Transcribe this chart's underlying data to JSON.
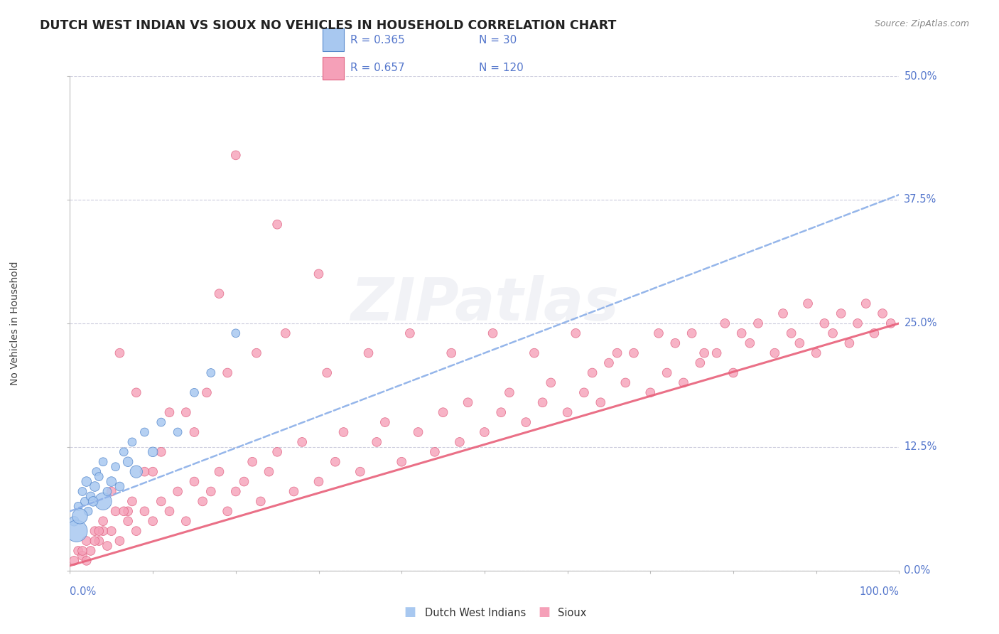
{
  "title": "DUTCH WEST INDIAN VS SIOUX NO VEHICLES IN HOUSEHOLD CORRELATION CHART",
  "source": "Source: ZipAtlas.com",
  "ylabel": "No Vehicles in Household",
  "ytick_labels": [
    "0.0%",
    "12.5%",
    "25.0%",
    "37.5%",
    "50.0%"
  ],
  "ytick_values": [
    0,
    12.5,
    25,
    37.5,
    50
  ],
  "xtick_labels": [
    "0.0%",
    "100.0%"
  ],
  "xlim": [
    0,
    100
  ],
  "ylim": [
    0,
    50
  ],
  "legend_labels": [
    "Dutch West Indians",
    "Sioux"
  ],
  "legend_r": [
    0.365,
    0.657
  ],
  "legend_n": [
    30,
    120
  ],
  "color_blue": "#A8C8F0",
  "color_pink": "#F5A0B8",
  "color_blue_edge": "#5588CC",
  "color_pink_edge": "#E06080",
  "color_blue_line": "#8AAEE8",
  "color_pink_line": "#E8607A",
  "watermark": "ZIPatlas",
  "background_color": "#FFFFFF",
  "grid_color": "#CCCCDD",
  "axis_label_color": "#5577CC",
  "title_color": "#222222",
  "source_color": "#888888",
  "dutch_x": [
    0.5,
    1.0,
    1.5,
    1.8,
    2.0,
    2.2,
    2.5,
    3.0,
    3.2,
    3.5,
    4.0,
    4.0,
    4.5,
    5.0,
    5.5,
    6.0,
    6.5,
    7.0,
    7.5,
    8.0,
    9.0,
    10.0,
    11.0,
    13.0,
    15.0,
    17.0,
    20.0,
    0.8,
    1.2,
    2.8
  ],
  "dutch_y": [
    5.0,
    6.5,
    8.0,
    7.0,
    9.0,
    6.0,
    7.5,
    8.5,
    10.0,
    9.5,
    7.0,
    11.0,
    8.0,
    9.0,
    10.5,
    8.5,
    12.0,
    11.0,
    13.0,
    10.0,
    14.0,
    12.0,
    15.0,
    14.0,
    18.0,
    20.0,
    24.0,
    4.0,
    5.5,
    7.0
  ],
  "dutch_s": [
    80,
    60,
    60,
    60,
    80,
    60,
    70,
    80,
    60,
    60,
    250,
    60,
    60,
    80,
    60,
    70,
    60,
    80,
    60,
    130,
    60,
    80,
    60,
    60,
    60,
    60,
    60,
    400,
    200,
    80
  ],
  "sioux_x": [
    0.5,
    1.0,
    1.5,
    2.0,
    2.5,
    3.0,
    3.5,
    4.0,
    4.5,
    5.0,
    5.5,
    6.0,
    7.0,
    7.5,
    8.0,
    9.0,
    10.0,
    11.0,
    12.0,
    13.0,
    14.0,
    15.0,
    16.0,
    17.0,
    18.0,
    19.0,
    20.0,
    21.0,
    22.0,
    23.0,
    24.0,
    25.0,
    27.0,
    28.0,
    30.0,
    32.0,
    33.0,
    35.0,
    37.0,
    38.0,
    40.0,
    42.0,
    44.0,
    45.0,
    47.0,
    48.0,
    50.0,
    52.0,
    53.0,
    55.0,
    57.0,
    58.0,
    60.0,
    62.0,
    63.0,
    64.0,
    65.0,
    67.0,
    68.0,
    70.0,
    72.0,
    73.0,
    74.0,
    75.0,
    76.0,
    78.0,
    79.0,
    80.0,
    81.0,
    82.0,
    83.0,
    85.0,
    86.0,
    87.0,
    88.0,
    89.0,
    90.0,
    91.0,
    92.0,
    93.0,
    94.0,
    95.0,
    96.0,
    97.0,
    98.0,
    99.0,
    2.0,
    3.0,
    4.0,
    5.0,
    7.0,
    10.0,
    15.0,
    6.0,
    8.0,
    12.0,
    18.0,
    25.0,
    30.0,
    20.0,
    1.5,
    3.5,
    6.5,
    9.0,
    11.0,
    14.0,
    16.5,
    19.0,
    22.5,
    26.0,
    31.0,
    36.0,
    41.0,
    46.0,
    51.0,
    56.0,
    61.0,
    66.0,
    71.0,
    76.5
  ],
  "sioux_y": [
    1.0,
    2.0,
    1.5,
    3.0,
    2.0,
    4.0,
    3.0,
    5.0,
    2.5,
    4.0,
    6.0,
    3.0,
    5.0,
    7.0,
    4.0,
    6.0,
    5.0,
    7.0,
    6.0,
    8.0,
    5.0,
    9.0,
    7.0,
    8.0,
    10.0,
    6.0,
    8.0,
    9.0,
    11.0,
    7.0,
    10.0,
    12.0,
    8.0,
    13.0,
    9.0,
    11.0,
    14.0,
    10.0,
    13.0,
    15.0,
    11.0,
    14.0,
    12.0,
    16.0,
    13.0,
    17.0,
    14.0,
    16.0,
    18.0,
    15.0,
    17.0,
    19.0,
    16.0,
    18.0,
    20.0,
    17.0,
    21.0,
    19.0,
    22.0,
    18.0,
    20.0,
    23.0,
    19.0,
    24.0,
    21.0,
    22.0,
    25.0,
    20.0,
    24.0,
    23.0,
    25.0,
    22.0,
    26.0,
    24.0,
    23.0,
    27.0,
    22.0,
    25.0,
    24.0,
    26.0,
    23.0,
    25.0,
    27.0,
    24.0,
    26.0,
    25.0,
    1.0,
    3.0,
    4.0,
    8.0,
    6.0,
    10.0,
    14.0,
    22.0,
    18.0,
    16.0,
    28.0,
    35.0,
    30.0,
    42.0,
    2.0,
    4.0,
    6.0,
    10.0,
    12.0,
    16.0,
    18.0,
    20.0,
    22.0,
    24.0,
    20.0,
    22.0,
    24.0,
    22.0,
    24.0,
    22.0,
    24.0,
    22.0,
    24.0,
    22.0
  ],
  "sioux_s": [
    70,
    70,
    70,
    70,
    70,
    70,
    70,
    70,
    70,
    70,
    70,
    70,
    70,
    70,
    70,
    70,
    70,
    70,
    70,
    70,
    70,
    70,
    70,
    70,
    70,
    70,
    70,
    70,
    70,
    70,
    70,
    70,
    70,
    70,
    70,
    70,
    70,
    70,
    70,
    70,
    70,
    70,
    70,
    70,
    70,
    70,
    70,
    70,
    70,
    70,
    70,
    70,
    70,
    70,
    70,
    70,
    70,
    70,
    70,
    70,
    70,
    70,
    70,
    70,
    70,
    70,
    70,
    70,
    70,
    70,
    70,
    70,
    70,
    70,
    70,
    70,
    70,
    70,
    70,
    70,
    70,
    70,
    70,
    70,
    70,
    70,
    70,
    70,
    70,
    70,
    70,
    70,
    70,
    70,
    70,
    70,
    70,
    70,
    70,
    70,
    70,
    70,
    70,
    70,
    70,
    70,
    70,
    70,
    70,
    70,
    70,
    70,
    70,
    70,
    70,
    70,
    70,
    70,
    70,
    70
  ]
}
